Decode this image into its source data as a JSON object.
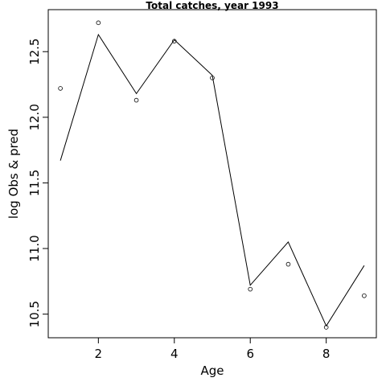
{
  "chart_data": {
    "type": "line",
    "title": "Total catches, year 1993",
    "xlabel": "Age",
    "ylabel": "log Obs & pred",
    "xlim": [
      0.68,
      9.32
    ],
    "ylim": [
      10.32,
      12.82
    ],
    "xticks": [
      2,
      4,
      6,
      8
    ],
    "yticks": [
      10.5,
      11.0,
      11.5,
      12.0,
      12.5
    ],
    "ytick_labels": [
      "10.5",
      "11.0",
      "11.5",
      "12.0",
      "12.5"
    ],
    "grid": false,
    "series": [
      {
        "role": "observed",
        "style": "points",
        "x": [
          1,
          2,
          3,
          4,
          5,
          6,
          7,
          8,
          9
        ],
        "y": [
          12.22,
          12.72,
          12.13,
          12.58,
          12.3,
          10.69,
          10.88,
          10.4,
          10.64
        ]
      },
      {
        "role": "predicted",
        "style": "line",
        "x": [
          1,
          2,
          3,
          4,
          5,
          6,
          7,
          8,
          9
        ],
        "y": [
          11.67,
          12.63,
          12.18,
          12.59,
          12.32,
          10.72,
          11.05,
          10.41,
          10.87
        ]
      }
    ]
  }
}
